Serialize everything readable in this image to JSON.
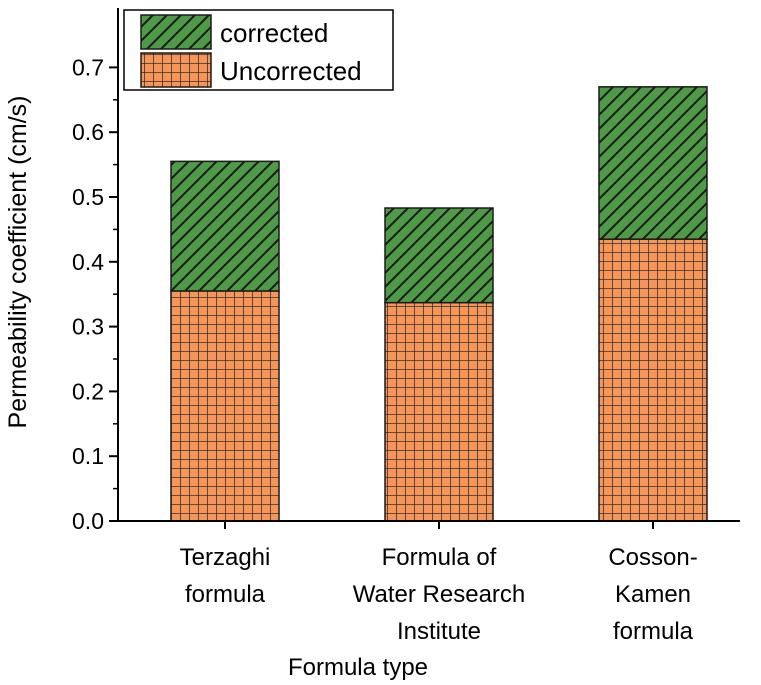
{
  "chart_data": {
    "type": "bar",
    "stacked": true,
    "categories": [
      [
        "Terzaghi",
        "formula"
      ],
      [
        "Formula of",
        "Water Research",
        "Institute"
      ],
      [
        "Cosson-",
        "Kamen",
        "formula"
      ]
    ],
    "series": [
      {
        "name": "Uncorrected",
        "values": [
          0.355,
          0.337,
          0.435
        ],
        "color": "#f4955a",
        "pattern": "grid"
      },
      {
        "name": "corrected",
        "values": [
          0.2,
          0.146,
          0.235
        ],
        "color": "#4e9a47",
        "pattern": "diagonal"
      }
    ],
    "legend_order": [
      "corrected",
      "Uncorrected"
    ],
    "legend_position": "top-left",
    "xlabel": "Formula type",
    "ylabel": "Permeability coefficient (cm/s)",
    "ylim": [
      0,
      0.75
    ],
    "yticks": [
      "0.0",
      "0.1",
      "0.2",
      "0.3",
      "0.4",
      "0.5",
      "0.6",
      "0.7"
    ],
    "grid": false
  }
}
